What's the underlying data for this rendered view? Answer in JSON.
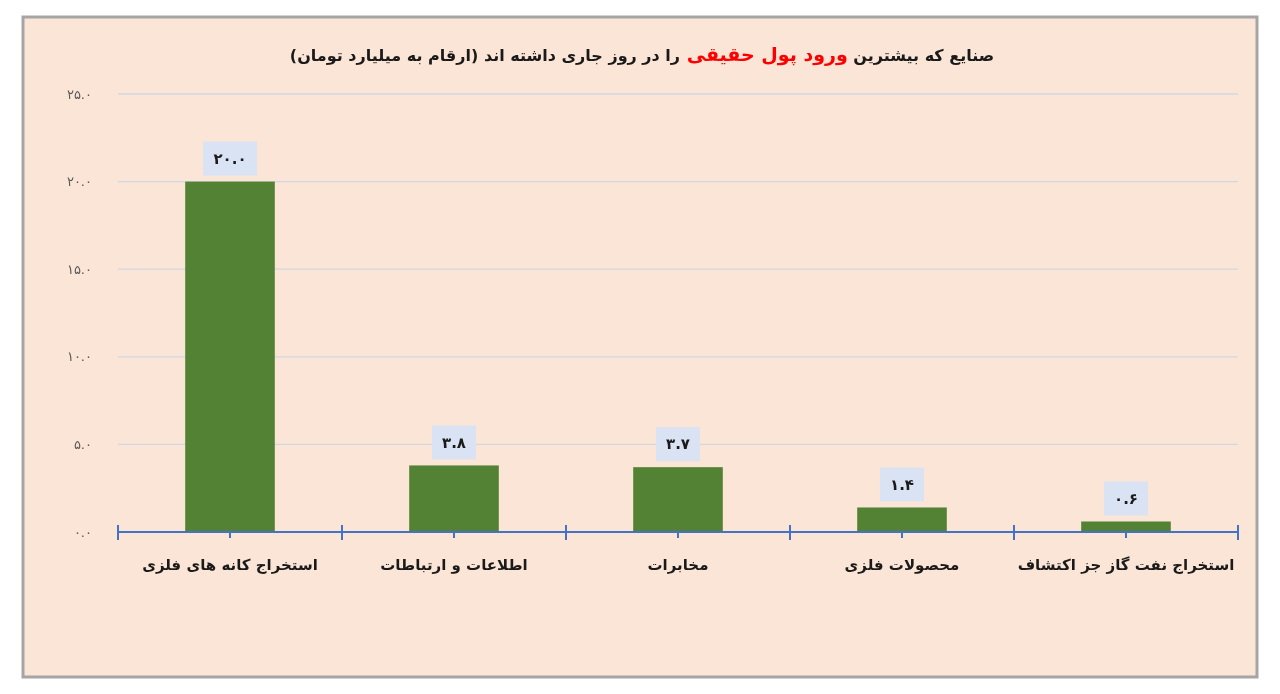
{
  "chart_data": {
    "type": "bar",
    "title": "صنایع که بیشترین ورود پول حقیقی را در روز جاری داشته اند (ارقام به میلیارد تومان)",
    "categories": [
      "استخراج کانه های فلزی",
      "اطلاعات و ارتباطات",
      "مخابرات",
      "محصولات فلزی",
      "استخراج نفت گاز جز اکتشاف"
    ],
    "values": [
      20.0,
      3.8,
      3.7,
      1.4,
      0.6
    ],
    "color": "#548235",
    "value_labels": [
      "۲۰.۰",
      "۳.۸",
      "۳.۷",
      "۱.۴",
      "۰.۶"
    ],
    "ylim": [
      0,
      25
    ],
    "yticks": [
      {
        "value": 0,
        "label": "۰.۰"
      },
      {
        "value": 5,
        "label": "۵.۰"
      },
      {
        "value": 10,
        "label": "۱۰.۰"
      },
      {
        "value": 15,
        "label": "۱۵.۰"
      },
      {
        "value": 20,
        "label": "۲۰.۰"
      },
      {
        "value": 25,
        "label": "۲۵.۰"
      }
    ],
    "grid": "y"
  }
}
